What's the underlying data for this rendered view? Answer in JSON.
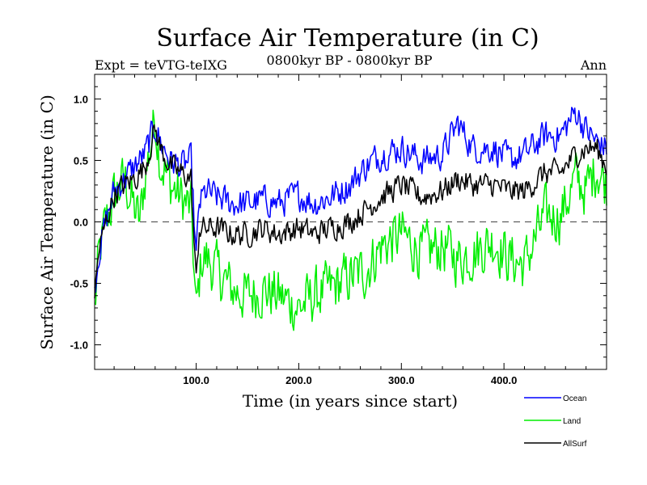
{
  "chart_data": {
    "type": "line",
    "title": "Surface Air Temperature (in C)",
    "subtitle": "0800kyr BP - 0800kyr BP",
    "experiment": "Expt = teVTG-teIXG",
    "season": "Ann",
    "xlabel": "Time (in years since start)",
    "ylabel": "Surface Air Temperature (in C)",
    "xlim": [
      1,
      500
    ],
    "ylim": [
      -1.2,
      1.2
    ],
    "x_ticks": [
      100,
      200,
      300,
      400
    ],
    "x_tick_labels": [
      "100.0",
      "200.0",
      "300.0",
      "400.0"
    ],
    "y_ticks": [
      1.0,
      0.5,
      0.0,
      -0.5,
      -1.0
    ],
    "y_tick_labels": [
      "1.0",
      "0.5",
      "0.0",
      "-0.5",
      "-1.0"
    ],
    "reference_line": 0.0,
    "series": [
      {
        "name": "Ocean",
        "color": "#0000ff",
        "anchors": [
          [
            1,
            -0.55
          ],
          [
            5,
            -0.25
          ],
          [
            12,
            0.0
          ],
          [
            20,
            0.25
          ],
          [
            30,
            0.35
          ],
          [
            40,
            0.45
          ],
          [
            50,
            0.55
          ],
          [
            60,
            0.78
          ],
          [
            65,
            0.65
          ],
          [
            75,
            0.5
          ],
          [
            85,
            0.45
          ],
          [
            95,
            0.5
          ],
          [
            100,
            -0.3
          ],
          [
            103,
            0.15
          ],
          [
            110,
            0.25
          ],
          [
            120,
            0.2
          ],
          [
            135,
            0.15
          ],
          [
            150,
            0.15
          ],
          [
            165,
            0.18
          ],
          [
            180,
            0.15
          ],
          [
            200,
            0.22
          ],
          [
            215,
            0.15
          ],
          [
            230,
            0.2
          ],
          [
            250,
            0.3
          ],
          [
            265,
            0.45
          ],
          [
            280,
            0.55
          ],
          [
            300,
            0.6
          ],
          [
            320,
            0.5
          ],
          [
            340,
            0.55
          ],
          [
            355,
            0.8
          ],
          [
            370,
            0.6
          ],
          [
            390,
            0.6
          ],
          [
            405,
            0.5
          ],
          [
            420,
            0.55
          ],
          [
            440,
            0.7
          ],
          [
            455,
            0.7
          ],
          [
            470,
            0.9
          ],
          [
            480,
            0.75
          ],
          [
            490,
            0.65
          ],
          [
            500,
            0.6
          ]
        ],
        "noise": 0.11
      },
      {
        "name": "Land",
        "color": "#00ee00",
        "anchors": [
          [
            1,
            -0.72
          ],
          [
            5,
            -0.3
          ],
          [
            12,
            0.0
          ],
          [
            20,
            0.2
          ],
          [
            30,
            0.35
          ],
          [
            40,
            0.1
          ],
          [
            45,
            0.0
          ],
          [
            50,
            0.35
          ],
          [
            60,
            0.85
          ],
          [
            65,
            0.5
          ],
          [
            75,
            0.3
          ],
          [
            85,
            0.2
          ],
          [
            95,
            0.1
          ],
          [
            100,
            -0.75
          ],
          [
            105,
            -0.3
          ],
          [
            110,
            -0.3
          ],
          [
            120,
            -0.4
          ],
          [
            135,
            -0.55
          ],
          [
            150,
            -0.6
          ],
          [
            165,
            -0.55
          ],
          [
            180,
            -0.6
          ],
          [
            200,
            -0.7
          ],
          [
            215,
            -0.6
          ],
          [
            230,
            -0.55
          ],
          [
            250,
            -0.45
          ],
          [
            265,
            -0.4
          ],
          [
            280,
            -0.2
          ],
          [
            300,
            -0.1
          ],
          [
            320,
            -0.25
          ],
          [
            340,
            -0.2
          ],
          [
            355,
            -0.3
          ],
          [
            370,
            -0.25
          ],
          [
            390,
            -0.15
          ],
          [
            405,
            -0.3
          ],
          [
            420,
            -0.35
          ],
          [
            440,
            0.05
          ],
          [
            455,
            0.05
          ],
          [
            470,
            0.35
          ],
          [
            480,
            0.25
          ],
          [
            490,
            0.45
          ],
          [
            500,
            0.3
          ]
        ],
        "noise": 0.2
      },
      {
        "name": "AllSurf",
        "color": "#000000",
        "anchors": [
          [
            1,
            -0.6
          ],
          [
            5,
            -0.25
          ],
          [
            12,
            0.0
          ],
          [
            20,
            0.22
          ],
          [
            30,
            0.3
          ],
          [
            40,
            0.35
          ],
          [
            50,
            0.45
          ],
          [
            60,
            0.75
          ],
          [
            65,
            0.6
          ],
          [
            75,
            0.45
          ],
          [
            85,
            0.4
          ],
          [
            95,
            0.35
          ],
          [
            100,
            -0.5
          ],
          [
            103,
            -0.05
          ],
          [
            110,
            -0.05
          ],
          [
            120,
            -0.05
          ],
          [
            135,
            -0.1
          ],
          [
            150,
            -0.1
          ],
          [
            165,
            -0.05
          ],
          [
            180,
            -0.1
          ],
          [
            200,
            -0.05
          ],
          [
            215,
            -0.1
          ],
          [
            230,
            -0.05
          ],
          [
            250,
            0.0
          ],
          [
            265,
            0.1
          ],
          [
            280,
            0.2
          ],
          [
            300,
            0.3
          ],
          [
            320,
            0.2
          ],
          [
            340,
            0.25
          ],
          [
            355,
            0.35
          ],
          [
            370,
            0.3
          ],
          [
            390,
            0.3
          ],
          [
            405,
            0.25
          ],
          [
            420,
            0.25
          ],
          [
            440,
            0.4
          ],
          [
            455,
            0.4
          ],
          [
            470,
            0.55
          ],
          [
            480,
            0.6
          ],
          [
            490,
            0.6
          ],
          [
            500,
            0.45
          ]
        ],
        "noise": 0.09
      }
    ],
    "legend": {
      "placement": "bottom-right",
      "entries": [
        "Ocean",
        "Land",
        "AllSurf"
      ]
    }
  }
}
